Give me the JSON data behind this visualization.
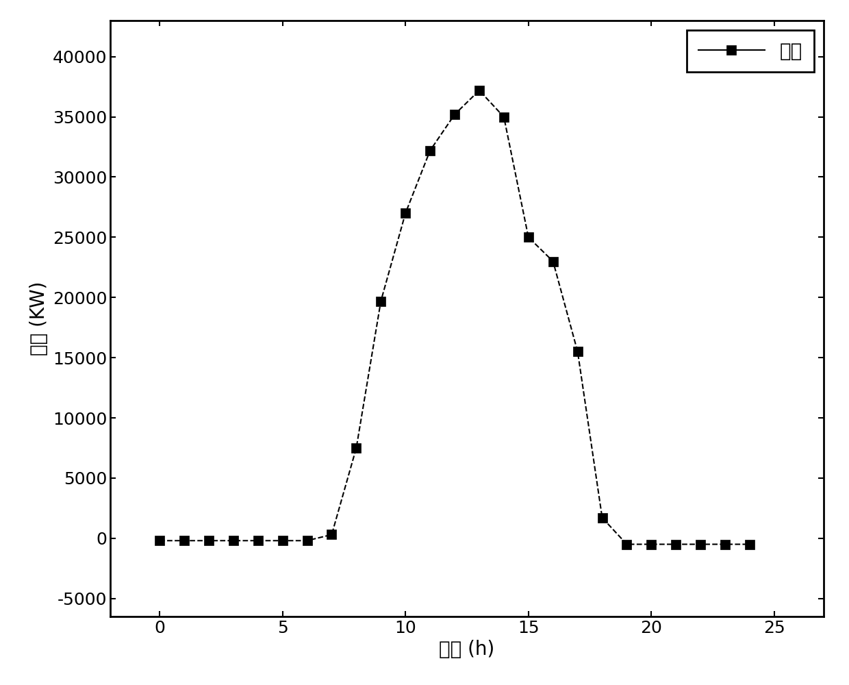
{
  "x": [
    0,
    1,
    2,
    3,
    4,
    5,
    6,
    7,
    8,
    9,
    10,
    11,
    12,
    13,
    14,
    15,
    16,
    17,
    18,
    19,
    20,
    21,
    22,
    23,
    24
  ],
  "y": [
    -200,
    -200,
    -200,
    -200,
    -200,
    -200,
    -200,
    300,
    7500,
    19700,
    27000,
    32200,
    35200,
    37200,
    35000,
    25000,
    23000,
    15500,
    1700,
    -500,
    -500,
    -500,
    -500,
    -500,
    -500
  ],
  "xlabel": "时间 (h)",
  "ylabel": "功率 (KW)",
  "legend_label": "功率",
  "line_color": "#000000",
  "marker": "s",
  "marker_size": 10,
  "marker_color": "#000000",
  "line_style": "--",
  "line_width": 1.5,
  "xlim": [
    -2,
    27
  ],
  "ylim": [
    -6500,
    43000
  ],
  "xticks": [
    0,
    5,
    10,
    15,
    20,
    25
  ],
  "yticks": [
    -5000,
    0,
    5000,
    10000,
    15000,
    20000,
    25000,
    30000,
    35000,
    40000
  ],
  "background_color": "#ffffff",
  "grid": false,
  "axis_label_fontsize": 20,
  "tick_fontsize": 18,
  "legend_fontsize": 20
}
